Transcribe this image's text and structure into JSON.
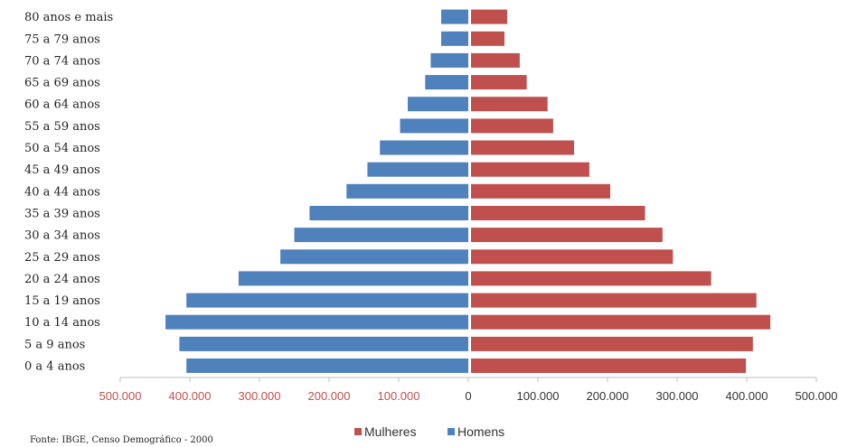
{
  "chart_data": {
    "type": "bar",
    "orientation": "horizontal",
    "layout": "population-pyramid",
    "categories": [
      "0 a 4 anos",
      "5 a 9 anos",
      "10 a 14 anos",
      "15 a 19 anos",
      "20 a 24 anos",
      "25 a 29 anos",
      "30 a 34 anos",
      "35 a 39 anos",
      "40 a 44 anos",
      "45 a 49 anos",
      "50 a 54 anos",
      "55 a 59 anos",
      "60 a 64 anos",
      "65 a 69 anos",
      "70 a 74 anos",
      "75 a 79 anos",
      "80 anos e mais"
    ],
    "series": [
      {
        "name": "Mulheres",
        "color": "#c0504d",
        "side": "right",
        "values": [
          395000,
          405000,
          430000,
          410000,
          345000,
          290000,
          275000,
          250000,
          200000,
          170000,
          148000,
          118000,
          110000,
          80000,
          70000,
          48000,
          52000
        ]
      },
      {
        "name": "Homens",
        "color": "#4f81bd",
        "side": "left",
        "values": [
          405000,
          415000,
          435000,
          405000,
          330000,
          270000,
          250000,
          228000,
          175000,
          145000,
          127000,
          98000,
          87000,
          62000,
          54000,
          39000,
          39000
        ]
      }
    ],
    "xlim": [
      -500000,
      500000
    ],
    "x_ticks": [
      {
        "value": -500000,
        "label": "500.000"
      },
      {
        "value": -400000,
        "label": "400.000"
      },
      {
        "value": -300000,
        "label": "300.000"
      },
      {
        "value": -200000,
        "label": "200.000"
      },
      {
        "value": -100000,
        "label": "100.000"
      },
      {
        "value": 0,
        "label": "0"
      },
      {
        "value": 100000,
        "label": "100.000"
      },
      {
        "value": 200000,
        "label": "200.000"
      },
      {
        "value": 300000,
        "label": "300.000"
      },
      {
        "value": 400000,
        "label": "400.000"
      },
      {
        "value": 500000,
        "label": "500.000"
      }
    ],
    "left_tick_color": "#c0504d",
    "right_tick_color": "#333333",
    "grid": false,
    "legend_position": "bottom",
    "title": "",
    "xlabel": "",
    "ylabel": ""
  },
  "source_note": "Fonte: IBGE, Censo Demográfico - 2000"
}
